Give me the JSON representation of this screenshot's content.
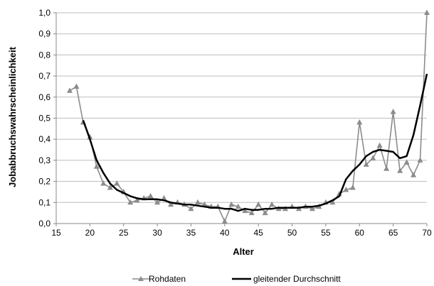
{
  "chart_data": {
    "type": "line",
    "xlabel": "Alter",
    "ylabel": "Jobabbruchswahrscheinlichkeit",
    "xlim": [
      15,
      70
    ],
    "ylim": [
      0,
      1
    ],
    "x_ticks": [
      "15",
      "20",
      "25",
      "30",
      "35",
      "40",
      "45",
      "50",
      "55",
      "60",
      "65",
      "70"
    ],
    "y_ticks": [
      "0,0",
      "0,1",
      "0,2",
      "0,3",
      "0,4",
      "0,5",
      "0,6",
      "0,7",
      "0,8",
      "0,9",
      "1,0"
    ],
    "grid": "horizontal",
    "legend_position": "bottom",
    "series": [
      {
        "name": "Rohdaten",
        "color": "#8c8c8c",
        "marker": "triangle",
        "x": [
          17,
          18,
          19,
          20,
          21,
          22,
          23,
          24,
          25,
          26,
          27,
          28,
          29,
          30,
          31,
          32,
          33,
          34,
          35,
          36,
          37,
          38,
          39,
          40,
          41,
          42,
          43,
          44,
          45,
          46,
          47,
          48,
          49,
          50,
          51,
          52,
          53,
          54,
          55,
          56,
          57,
          58,
          59,
          60,
          61,
          62,
          63,
          64,
          65,
          66,
          67,
          68,
          69,
          70
        ],
        "y": [
          0.63,
          0.65,
          0.48,
          0.41,
          0.27,
          0.19,
          0.17,
          0.19,
          0.15,
          0.1,
          0.11,
          0.12,
          0.13,
          0.1,
          0.12,
          0.09,
          0.1,
          0.09,
          0.07,
          0.1,
          0.09,
          0.08,
          0.08,
          0.01,
          0.09,
          0.08,
          0.06,
          0.05,
          0.09,
          0.05,
          0.09,
          0.07,
          0.07,
          0.08,
          0.07,
          0.08,
          0.07,
          0.08,
          0.1,
          0.1,
          0.14,
          0.16,
          0.17,
          0.48,
          0.28,
          0.31,
          0.37,
          0.26,
          0.53,
          0.25,
          0.29,
          0.23,
          0.3,
          1.0
        ]
      },
      {
        "name": "gleitender Durchschnitt",
        "color": "#000000",
        "marker": "none",
        "x": [
          19,
          20,
          21,
          22,
          23,
          24,
          25,
          26,
          27,
          28,
          29,
          30,
          31,
          32,
          33,
          34,
          35,
          36,
          37,
          38,
          39,
          40,
          41,
          42,
          43,
          44,
          45,
          46,
          47,
          48,
          49,
          50,
          51,
          52,
          53,
          54,
          55,
          56,
          57,
          58,
          59,
          60,
          61,
          62,
          63,
          64,
          65,
          66,
          67,
          68,
          69,
          70
        ],
        "y": [
          0.49,
          0.4,
          0.3,
          0.24,
          0.19,
          0.16,
          0.145,
          0.13,
          0.12,
          0.115,
          0.115,
          0.115,
          0.11,
          0.1,
          0.095,
          0.09,
          0.09,
          0.085,
          0.08,
          0.075,
          0.075,
          0.07,
          0.07,
          0.06,
          0.07,
          0.065,
          0.065,
          0.07,
          0.07,
          0.075,
          0.075,
          0.075,
          0.075,
          0.08,
          0.08,
          0.085,
          0.095,
          0.11,
          0.13,
          0.21,
          0.25,
          0.28,
          0.32,
          0.34,
          0.35,
          0.345,
          0.34,
          0.31,
          0.32,
          0.42,
          0.56,
          0.71
        ]
      }
    ]
  }
}
